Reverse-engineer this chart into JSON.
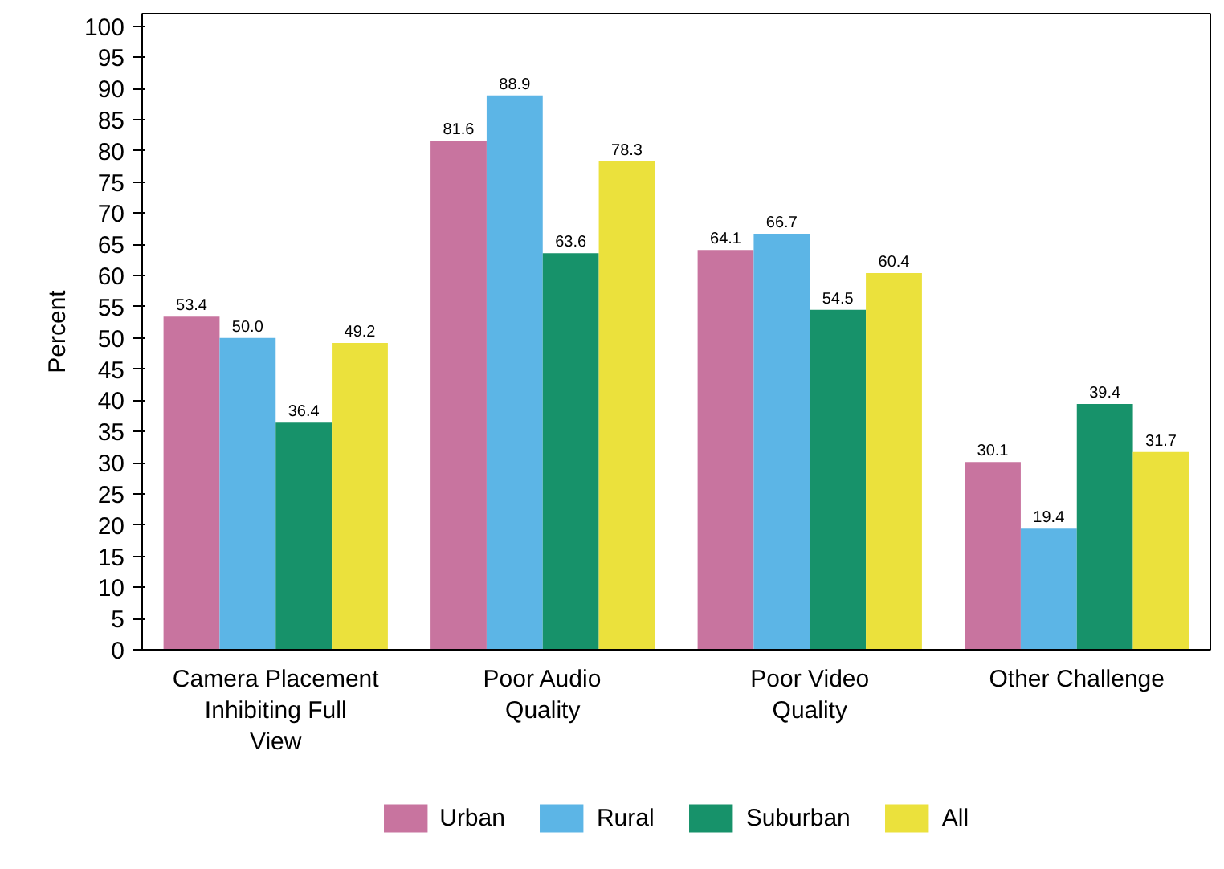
{
  "chart_data": {
    "type": "bar",
    "ylabel": "Percent",
    "categories": [
      "Camera Placement Inhibiting Full View",
      "Poor Audio Quality",
      "Poor Video Quality",
      "Other Challenge"
    ],
    "series": [
      {
        "name": "Urban",
        "color": "#c8749f",
        "values": [
          53.4,
          81.6,
          64.1,
          30.1
        ]
      },
      {
        "name": "Rural",
        "color": "#5cb5e6",
        "values": [
          50.0,
          88.9,
          66.7,
          19.4
        ]
      },
      {
        "name": "Suburban",
        "color": "#17926a",
        "values": [
          36.4,
          63.6,
          54.5,
          39.4
        ]
      },
      {
        "name": "All",
        "color": "#ebe13c",
        "values": [
          49.2,
          78.3,
          60.4,
          31.7
        ]
      }
    ],
    "ylim": [
      0,
      102
    ],
    "yticks": [
      0,
      5,
      10,
      15,
      20,
      25,
      30,
      35,
      40,
      45,
      50,
      55,
      60,
      65,
      70,
      75,
      80,
      85,
      90,
      95,
      100
    ],
    "value_labels": [
      [
        "53.4",
        "81.6",
        "64.1",
        "30.1"
      ],
      [
        "50.0",
        "88.9",
        "66.7",
        "19.4"
      ],
      [
        "36.4",
        "63.6",
        "54.5",
        "39.4"
      ],
      [
        "49.2",
        "78.3",
        "60.4",
        "31.7"
      ]
    ],
    "grid": false,
    "legend": "bottom"
  }
}
